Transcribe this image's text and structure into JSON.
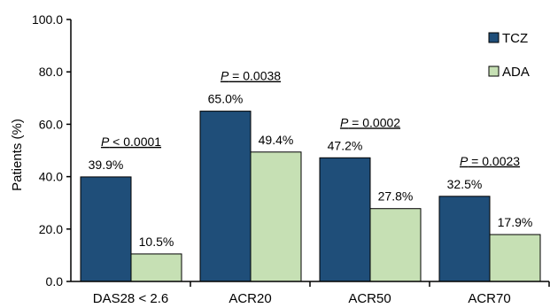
{
  "chart_data": {
    "type": "bar",
    "categories": [
      "DAS28 < 2.6",
      "ACR20",
      "ACR50",
      "ACR70"
    ],
    "series": [
      {
        "name": "TCZ",
        "values": [
          39.9,
          65.0,
          47.2,
          32.5
        ],
        "labels": [
          "39.9%",
          "65.0%",
          "47.2%",
          "32.5%"
        ],
        "color": "#1f4e79"
      },
      {
        "name": "ADA",
        "values": [
          10.5,
          49.4,
          27.8,
          17.9
        ],
        "labels": [
          "10.5%",
          "49.4%",
          "27.8%",
          "17.9%"
        ],
        "color": "#c6e0b4"
      }
    ],
    "p_values": [
      {
        "letter": "P",
        "text": " < 0.0001"
      },
      {
        "letter": "P",
        "text": " = 0.0038"
      },
      {
        "letter": "P",
        "text": " = 0.0002"
      },
      {
        "letter": "P",
        "text": " = 0.0023"
      }
    ],
    "ylabel": "Patients (%)",
    "xlabel": "",
    "ylim": [
      0,
      100
    ],
    "yticks": [
      "0.0",
      "20.0",
      "40.0",
      "60.0",
      "80.0",
      "100.0"
    ],
    "grid": false,
    "legend_position": "top-right"
  }
}
